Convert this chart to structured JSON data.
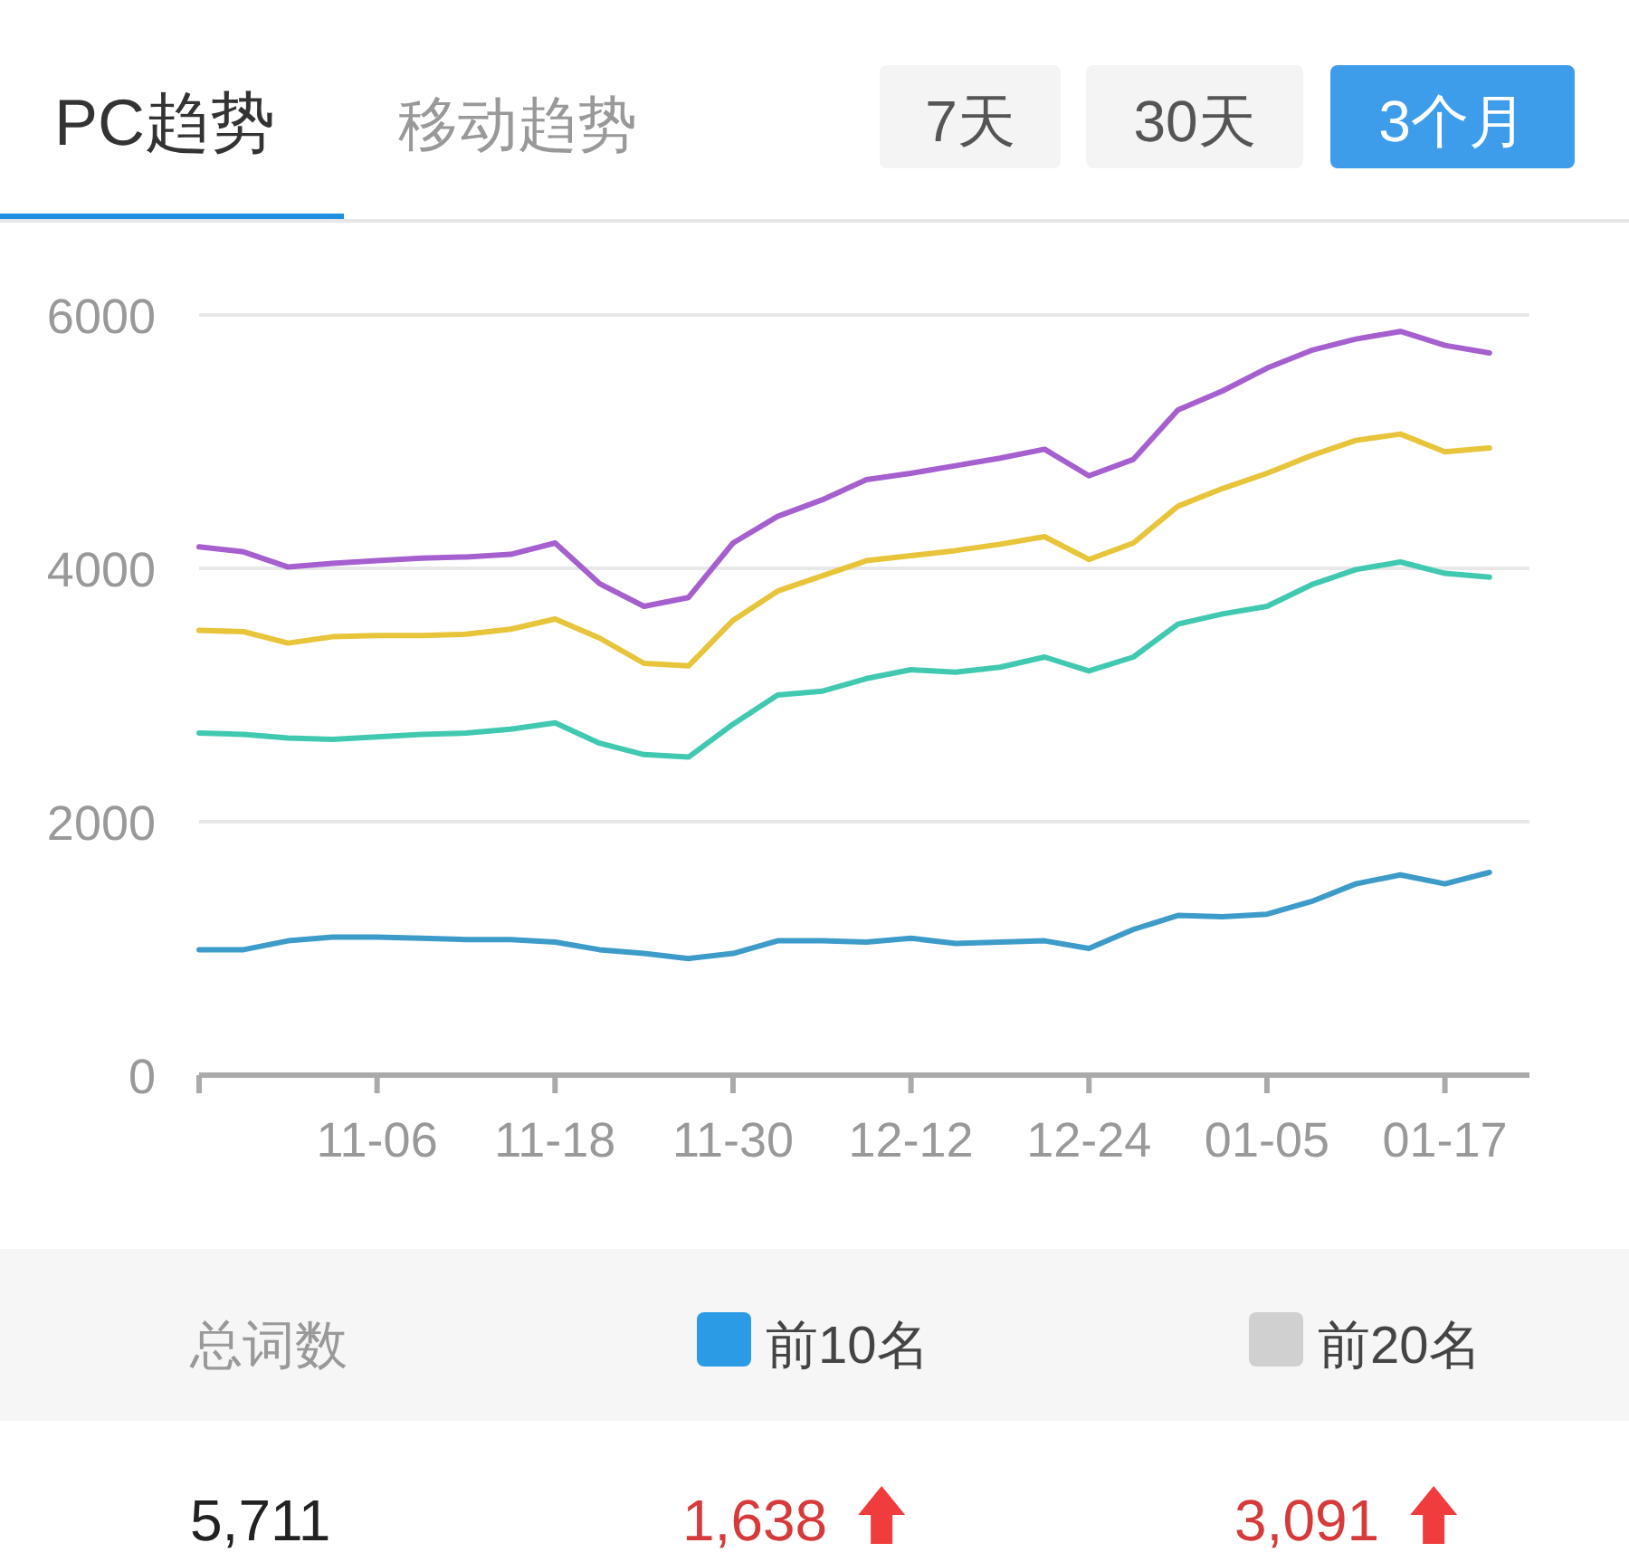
{
  "chart_data": [
    {
      "type": "line",
      "title": "PC趋势",
      "annotations": [
        "移动趋势",
        "7天",
        "30天",
        "3个月"
      ],
      "categories": [
        null,
        null,
        null,
        null,
        "11-06",
        null,
        null,
        null,
        "11-18",
        null,
        null,
        null,
        "11-30",
        null,
        null,
        null,
        "12-12",
        null,
        null,
        null,
        "12-24",
        null,
        null,
        null,
        "01-05",
        null,
        null,
        null,
        "01-17",
        null
      ],
      "series": [
        {
          "color": "#a55fcf",
          "values": [
            4170,
            4130,
            4010,
            4040,
            4060,
            4080,
            4090,
            4110,
            4200,
            3880,
            3700,
            3770,
            4200,
            4410,
            4540,
            4700,
            4750,
            4810,
            4870,
            4940,
            4730,
            4860,
            5250,
            5400,
            5580,
            5720,
            5810,
            5870,
            5760,
            5700
          ]
        },
        {
          "color": "#e8c43a",
          "values": [
            3510,
            3500,
            3410,
            3460,
            3470,
            3470,
            3480,
            3520,
            3600,
            3450,
            3250,
            3230,
            3590,
            3820,
            3940,
            4060,
            4100,
            4140,
            4190,
            4250,
            4070,
            4200,
            4490,
            4630,
            4750,
            4890,
            5010,
            5060,
            4920,
            4950
          ]
        },
        {
          "color": "#40c9b0",
          "values": [
            2700,
            2690,
            2660,
            2650,
            2670,
            2690,
            2700,
            2730,
            2780,
            2620,
            2530,
            2510,
            2770,
            3000,
            3030,
            3130,
            3200,
            3180,
            3220,
            3300,
            3190,
            3300,
            3560,
            3640,
            3700,
            3870,
            3990,
            4050,
            3960,
            3930
          ]
        },
        {
          "color": "#3d9bc9",
          "values": [
            990,
            990,
            1060,
            1090,
            1090,
            1080,
            1070,
            1070,
            1050,
            990,
            960,
            920,
            960,
            1060,
            1060,
            1050,
            1080,
            1040,
            1050,
            1060,
            1000,
            1150,
            1260,
            1250,
            1270,
            1370,
            1510,
            1580,
            1510,
            1600
          ]
        }
      ],
      "ylim": [
        0,
        6000
      ],
      "yticks": [
        0,
        2000,
        4000,
        6000
      ],
      "grid": "y",
      "line_style": "solid"
    },
    {
      "type": "other",
      "categories": [
        "总词数",
        "前10名",
        "前20名"
      ],
      "value_labels": [
        "5,711",
        "1,638",
        "3,091"
      ],
      "colors": [
        null,
        "#2b9be6",
        "#d0d0d0"
      ]
    }
  ]
}
